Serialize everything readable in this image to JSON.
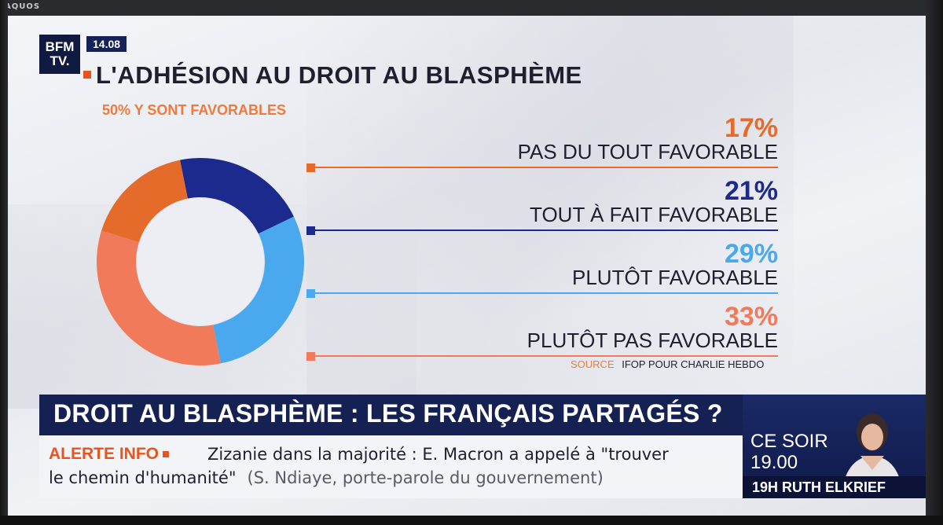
{
  "tv": {
    "brand": "AQUOS"
  },
  "channel": {
    "logo_text": "BFM TV.",
    "clock": "14.08"
  },
  "colors": {
    "accent_orange": "#e8541e",
    "navy": "#152153"
  },
  "chart_data": {
    "type": "pie",
    "title": "L'ADHÉSION AU DROIT AU BLASPHÈME",
    "subtitle": "50% Y SONT FAVORABLES",
    "slices": [
      {
        "label": "PAS DU TOUT FAVORABLE",
        "value": 17,
        "display": "17%",
        "color": "#e56b2a"
      },
      {
        "label": "TOUT À FAIT FAVORABLE",
        "value": 21,
        "display": "21%",
        "color": "#1b2a8c"
      },
      {
        "label": "PLUTÔT FAVORABLE",
        "value": 29,
        "display": "29%",
        "color": "#4aa9ee"
      },
      {
        "label": "PLUTÔT PAS FAVORABLE",
        "value": 33,
        "display": "33%",
        "color": "#f07a5a"
      }
    ],
    "donut": true,
    "source_label": "SOURCE",
    "source_text": "IFOP POUR CHARLIE HEBDO"
  },
  "banner": {
    "headline": "DROIT AU BLASPHÈME : LES FRANÇAIS PARTAGÉS ?"
  },
  "ticker": {
    "label": "ALERTE INFO",
    "text_line1": "Zizanie dans la majorité : E. Macron a appelé à \"trouver",
    "text_line2": "le chemin d'humanité\"",
    "attribution": "(S. Ndiaye, porte-parole du gouvernement)"
  },
  "promo": {
    "ce_soir": "CE SOIR",
    "time": "19.00",
    "show": "19H RUTH ELKRIEF"
  }
}
